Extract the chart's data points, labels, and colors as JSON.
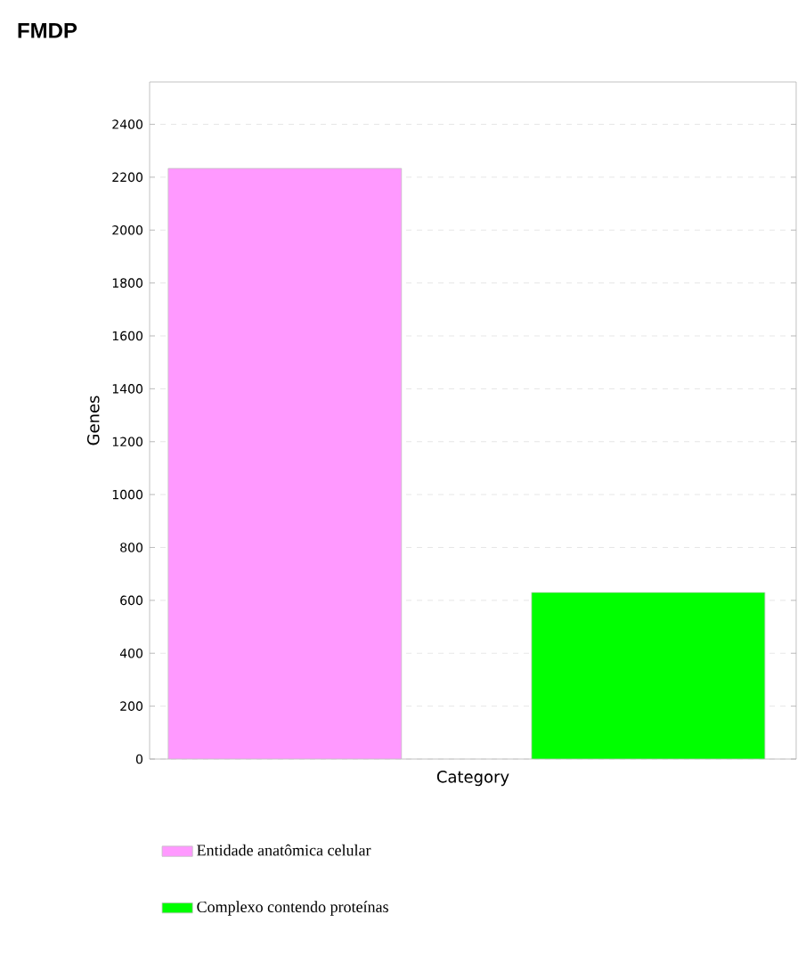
{
  "chart_data": {
    "type": "bar",
    "title": "FMDP",
    "xlabel": "Category",
    "ylabel": "Genes",
    "categories": [
      null
    ],
    "series": [
      {
        "name": "Entidade anatômica celular",
        "color": "#ff99ff",
        "values": [
          2233
        ]
      },
      {
        "name": "Complexo contendo proteínas",
        "color": "#00ff00",
        "values": [
          630
        ]
      }
    ],
    "ylim": [
      0,
      2560
    ],
    "yticks": [
      0,
      200,
      400,
      600,
      800,
      1000,
      1200,
      1400,
      1600,
      1800,
      2000,
      2200,
      2400
    ],
    "grid": "y",
    "legend": "bottom"
  }
}
